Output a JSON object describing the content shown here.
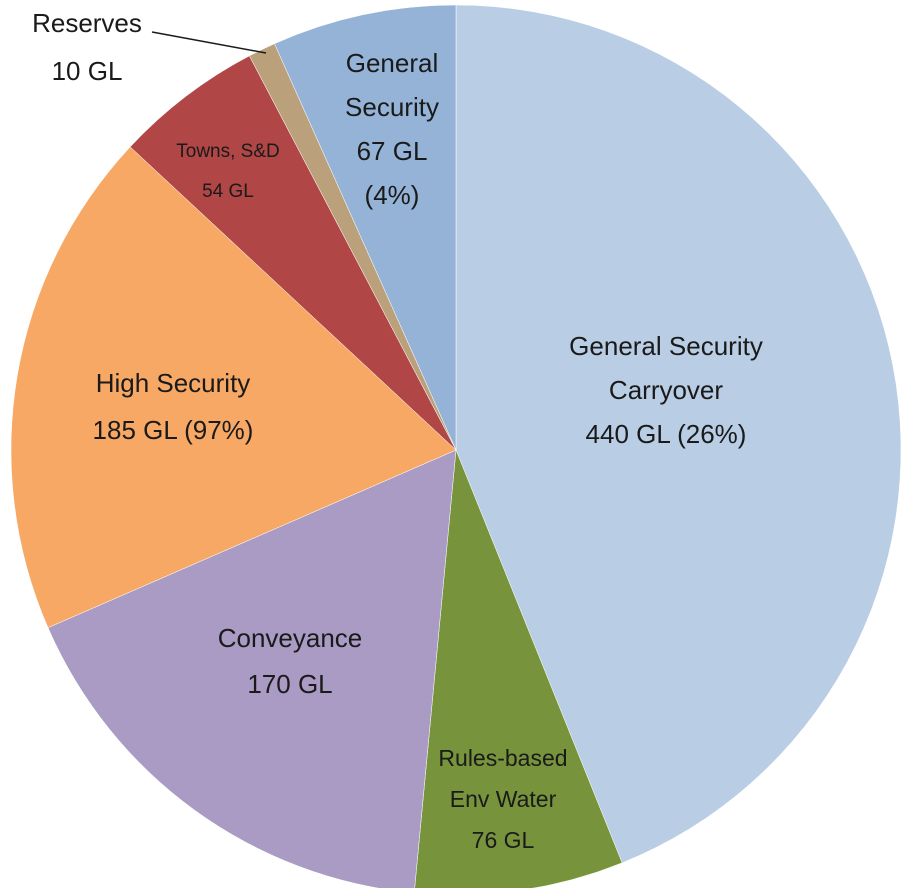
{
  "chart_data": {
    "type": "pie",
    "categories": [
      [
        "General Security",
        "Carryover"
      ],
      [
        "Rules-based",
        "Env Water"
      ],
      [
        "Conveyance"
      ],
      [
        "High Security"
      ],
      [
        "Towns, S&D"
      ],
      [
        "Reserves"
      ],
      [
        "General",
        "Security"
      ]
    ],
    "values": [
      440,
      76,
      170,
      185,
      54,
      10,
      67
    ],
    "value_labels": [
      [
        "440 GL (26%)"
      ],
      [
        "76 GL"
      ],
      [
        "170 GL"
      ],
      [
        "185 GL (97%)"
      ],
      [
        "54 GL"
      ],
      [
        "10 GL"
      ],
      [
        "67 GL",
        "(4%)"
      ]
    ],
    "colors": [
      "#b9cde5",
      "#77933c",
      "#a99bc3",
      "#f7a864",
      "#b04645",
      "#bba07c",
      "#95b3d7"
    ]
  }
}
